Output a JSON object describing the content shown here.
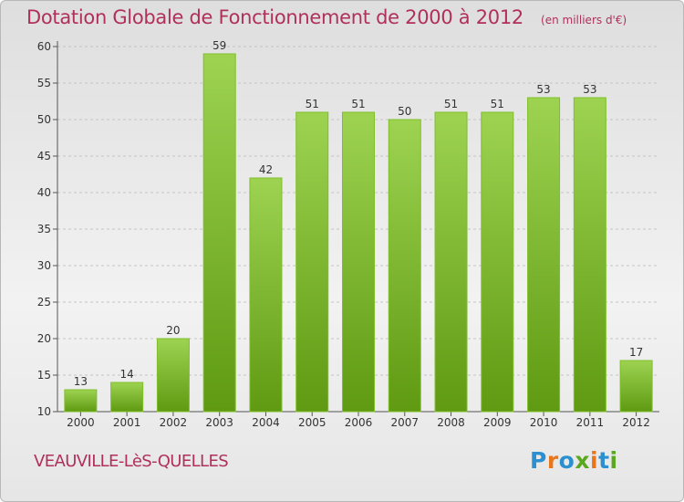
{
  "header": {
    "title": "Dotation Globale de Fonctionnement de 2000 à 2012",
    "unit": "(en milliers d'€)"
  },
  "footer": {
    "commune": "VEAUVILLE-LèS-QUELLES",
    "logo": "Proxiti"
  },
  "colors": {
    "title": "#b0305a",
    "bar_light": "#9dd351",
    "bar_dark": "#5f9a12",
    "logo": [
      "#2b8fd0",
      "#e8761b",
      "#2b8fd0",
      "#5aa81e",
      "#e8761b",
      "#2b8fd0",
      "#5aa81e"
    ]
  },
  "chart_data": {
    "type": "bar",
    "title": "Dotation Globale de Fonctionnement de 2000 à 2012",
    "subtitle": "(en milliers d'€)",
    "categories": [
      "2000",
      "2001",
      "2002",
      "2003",
      "2004",
      "2005",
      "2006",
      "2007",
      "2008",
      "2009",
      "2010",
      "2011",
      "2012"
    ],
    "values": [
      13,
      14,
      20,
      59,
      42,
      51,
      51,
      50,
      51,
      51,
      53,
      53,
      17
    ],
    "ylim": [
      10,
      60
    ],
    "yticks": [
      "10",
      "15",
      "20",
      "25",
      "30",
      "35",
      "40",
      "45",
      "50",
      "55",
      "60"
    ],
    "grid": true,
    "legend": "none"
  }
}
